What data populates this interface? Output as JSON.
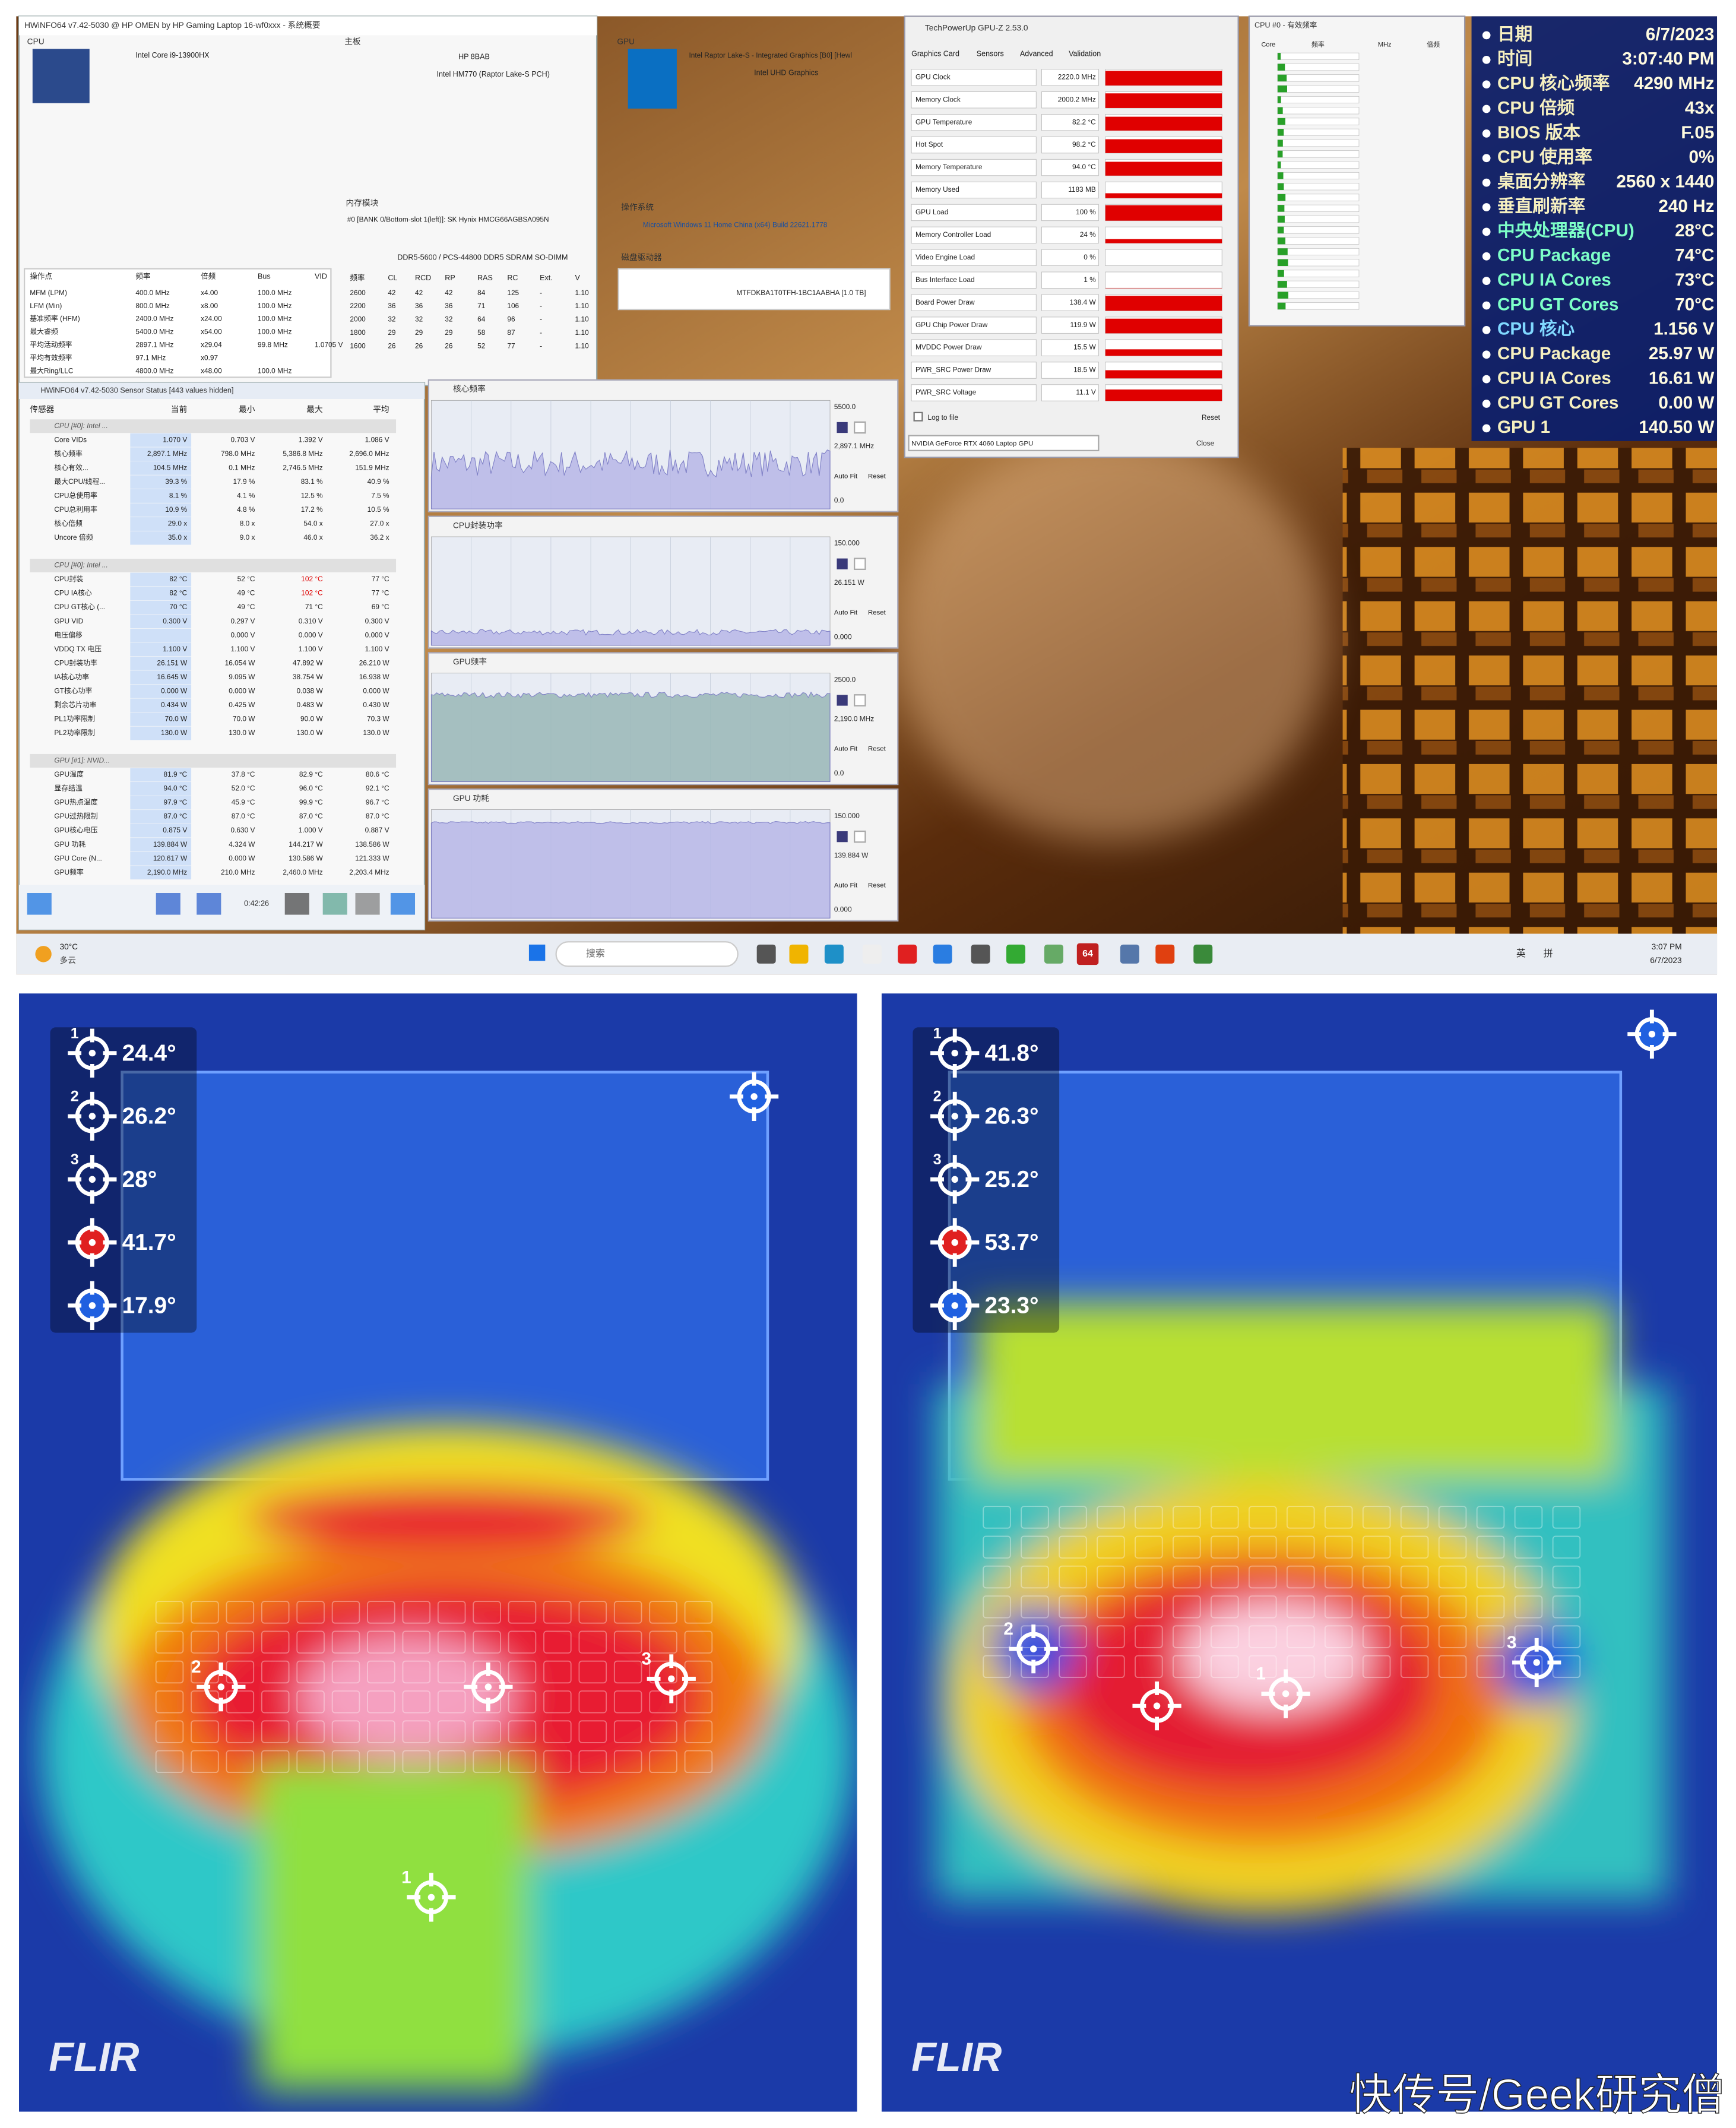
{
  "screenshot": {
    "hwinfo": {
      "title": "HWiNFO64 v7.42-5030 @ HP OMEN by HP Gaming Laptop 16-wf0xxx - 系统概要",
      "cpu_section": "CPU",
      "cpu_name": "Intel Core i9-13900HX",
      "board_section": "主板",
      "board": "HP 8BAB",
      "chipset": "Intel HM770 (Raptor Lake-S PCH)",
      "gpu_section": "GPU",
      "gpu_name": "Intel Raptor Lake-S - Integrated Graphics [B0] [Hewl",
      "gpu_model": "Intel UHD Graphics",
      "os_label": "操作系统",
      "os": "Microsoft Windows 11 Home China (x64) Build 22621.1778",
      "mem_label": "内存模块",
      "mem_module": "#0 [BANK 0/Bottom-slot 1(left)]: SK Hynix HMCG66AGBSA095N",
      "mem_type": "DDR5-5600 / PCS-44800 DDR5 SDRAM SO-DIMM",
      "drive_label": "磁盘驱动器",
      "drive": "MTFDKBA1T0TFH-1BC1AABHA [1.0 TB]",
      "ops_headers": [
        "操作点",
        "频率",
        "倍频",
        "Bus",
        "VID"
      ],
      "ops_rows": [
        [
          "MFM (LPM)",
          "400.0 MHz",
          "x4.00",
          "100.0 MHz",
          null
        ],
        [
          "LFM (Min)",
          "800.0 MHz",
          "x8.00",
          "100.0 MHz",
          null
        ],
        [
          "基准频率 (HFM)",
          "2400.0 MHz",
          "x24.00",
          "100.0 MHz",
          null
        ],
        [
          "最大睿频",
          "5400.0 MHz",
          "x54.00",
          "100.0 MHz",
          null
        ],
        [
          "平均活动频率",
          "2897.1 MHz",
          "x29.04",
          "99.8 MHz",
          "1.0705 V"
        ],
        [
          "平均有效频率",
          "97.1 MHz",
          "x0.97",
          null,
          null
        ],
        [
          "最大Ring/LLC",
          "4800.0 MHz",
          "x48.00",
          "100.0 MHz",
          null
        ]
      ],
      "timing_headers": [
        "频率",
        "CL",
        "RCD",
        "RP",
        "RAS",
        "RC",
        "Ext.",
        "V"
      ],
      "timing_rows": [
        [
          "2600",
          "42",
          "42",
          "42",
          "84",
          "125",
          "-",
          "1.10"
        ],
        [
          "2200",
          "36",
          "36",
          "36",
          "71",
          "106",
          "-",
          "1.10"
        ],
        [
          "2000",
          "32",
          "32",
          "32",
          "64",
          "96",
          "-",
          "1.10"
        ],
        [
          "1800",
          "29",
          "29",
          "29",
          "58",
          "87",
          "-",
          "1.10"
        ],
        [
          "1600",
          "26",
          "26",
          "26",
          "52",
          "77",
          "-",
          "1.10"
        ]
      ]
    },
    "sensors": {
      "title": "HWiNFO64 v7.42-5030 Sensor Status [443 values hidden]",
      "headers": [
        "传感器",
        "当前",
        "最小",
        "最大",
        "平均"
      ],
      "rows": [
        [
          "CPU [#0]: Intel ..."
        ],
        [
          "Core VIDs",
          "1.070 V",
          "0.703 V",
          "1.392 V",
          "1.086 V"
        ],
        [
          "核心频率",
          "2,897.1 MHz",
          "798.0 MHz",
          "5,386.8 MHz",
          "2,696.0 MHz"
        ],
        [
          "核心有效...",
          "104.5 MHz",
          "0.1 MHz",
          "2,746.5 MHz",
          "151.9 MHz"
        ],
        [
          "最大CPU/线程...",
          "39.3 %",
          "17.9 %",
          "83.1 %",
          "40.9 %"
        ],
        [
          "CPU总使用率",
          "8.1 %",
          "4.1 %",
          "12.5 %",
          "7.5 %"
        ],
        [
          "CPU总利用率",
          "10.9 %",
          "4.8 %",
          "17.2 %",
          "10.5 %"
        ],
        [
          "核心倍频",
          "29.0 x",
          "8.0 x",
          "54.0 x",
          "27.0 x"
        ],
        [
          "Uncore 倍频",
          "35.0 x",
          "9.0 x",
          "46.0 x",
          "36.2 x"
        ],
        [
          "CPU [#0]: Intel ..."
        ],
        [
          "CPU封装",
          "82 °C",
          "52 °C",
          "102 °C",
          "77 °C"
        ],
        [
          "CPU IA核心",
          "82 °C",
          "49 °C",
          "102 °C",
          "77 °C"
        ],
        [
          "CPU GT核心 (...",
          "70 °C",
          "49 °C",
          "71 °C",
          "69 °C"
        ],
        [
          "GPU VID",
          "0.300 V",
          "0.297 V",
          "0.310 V",
          "0.300 V"
        ],
        [
          "电压偏移",
          null,
          "0.000 V",
          "0.000 V",
          "0.000 V"
        ],
        [
          "VDDQ TX 电压",
          "1.100 V",
          "1.100 V",
          "1.100 V",
          "1.100 V"
        ],
        [
          "CPU封装功率",
          "26.151 W",
          "16.054 W",
          "47.892 W",
          "26.210 W"
        ],
        [
          "IA核心功率",
          "16.645 W",
          "9.095 W",
          "38.754 W",
          "16.938 W"
        ],
        [
          "GT核心功率",
          "0.000 W",
          "0.000 W",
          "0.038 W",
          "0.000 W"
        ],
        [
          "剩余芯片功率",
          "0.434 W",
          "0.425 W",
          "0.483 W",
          "0.430 W"
        ],
        [
          "PL1功率限制",
          "70.0 W",
          "70.0 W",
          "90.0 W",
          "70.3 W"
        ],
        [
          "PL2功率限制",
          "130.0 W",
          "130.0 W",
          "130.0 W",
          "130.0 W"
        ],
        [
          "GPU [#1]: NVID..."
        ],
        [
          "GPU温度",
          "81.9 °C",
          "37.8 °C",
          "82.9 °C",
          "80.6 °C"
        ],
        [
          "显存结温",
          "94.0 °C",
          "52.0 °C",
          "96.0 °C",
          "92.1 °C"
        ],
        [
          "GPU热点温度",
          "97.9 °C",
          "45.9 °C",
          "99.9 °C",
          "96.7 °C"
        ],
        [
          "GPU过热限制",
          "87.0 °C",
          "87.0 °C",
          "87.0 °C",
          "87.0 °C"
        ],
        [
          "GPU核心电压",
          "0.875 V",
          "0.630 V",
          "1.000 V",
          "0.887 V"
        ],
        [
          "GPU 功耗",
          "139.884 W",
          "4.324 W",
          "144.217 W",
          "138.586 W"
        ],
        [
          "GPU Core (N...",
          "120.617 W",
          "0.000 W",
          "130.586 W",
          "121.333 W"
        ],
        [
          "GPU频率",
          "2,190.0 MHz",
          "210.0 MHz",
          "2,460.0 MHz",
          "2,203.4 MHz"
        ]
      ],
      "uptime": "0:42:26"
    },
    "graphs": [
      {
        "title": "核心频率",
        "max": "5500.0",
        "current": "2,897.1 MHz",
        "min": "0.0"
      },
      {
        "title": "CPU封装功率",
        "max": "150.000",
        "current": "26.151 W",
        "min": "0.000"
      },
      {
        "title": "GPU频率",
        "max": "2500.0",
        "current": "2,190.0 MHz",
        "min": "0.0"
      },
      {
        "title": "GPU 功耗",
        "max": "150.000",
        "current": "139.884 W",
        "min": "0.000"
      }
    ],
    "graph_buttons": [
      "Auto Fit",
      "Reset"
    ],
    "gpuz": {
      "title": "TechPowerUp GPU-Z 2.53.0",
      "tabs": [
        "Graphics Card",
        "Sensors",
        "Advanced",
        "Validation"
      ],
      "rows": [
        [
          "GPU Clock",
          "2220.0 MHz"
        ],
        [
          "Memory Clock",
          "2000.2 MHz"
        ],
        [
          "GPU Temperature",
          "82.2 °C"
        ],
        [
          "Hot Spot",
          "98.2 °C"
        ],
        [
          "Memory Temperature",
          "94.0 °C"
        ],
        [
          "Memory Used",
          "1183 MB"
        ],
        [
          "GPU Load",
          "100 %"
        ],
        [
          "Memory Controller Load",
          "24 %"
        ],
        [
          "Video Engine Load",
          "0 %"
        ],
        [
          "Bus Interface Load",
          "1 %"
        ],
        [
          "Board Power Draw",
          "138.4 W"
        ],
        [
          "GPU Chip Power Draw",
          "119.9 W"
        ],
        [
          "MVDDC Power Draw",
          "15.5 W"
        ],
        [
          "PWR_SRC Power Draw",
          "18.5 W"
        ],
        [
          "PWR_SRC Voltage",
          "11.1 V"
        ]
      ],
      "log": "Log to file",
      "reset": "Reset",
      "device": "NVIDIA GeForce RTX 4060 Laptop GPU",
      "close": "Close"
    },
    "cpu_freq": {
      "title": "CPU #0 - 有效频率",
      "headers": [
        "Core",
        "频率",
        "MHz",
        "倍频"
      ]
    },
    "osd": [
      {
        "label": "日期",
        "value": "6/7/2023",
        "color": "#f6f0c0"
      },
      {
        "label": "时间",
        "value": "3:07:40 PM",
        "color": "#f6f0c0"
      },
      {
        "label": "CPU 核心频率",
        "value": "4290 MHz",
        "color": "#f6f0c0"
      },
      {
        "label": "CPU 倍频",
        "value": "43x",
        "color": "#f6f0c0"
      },
      {
        "label": "BIOS 版本",
        "value": "F.05",
        "color": "#f6f0c0"
      },
      {
        "label": "CPU 使用率",
        "value": "0%",
        "color": "#f6f0c0"
      },
      {
        "label": "桌面分辨率",
        "value": "2560 x 1440",
        "color": "#f6f0c0"
      },
      {
        "label": "垂直刷新率",
        "value": "240 Hz",
        "color": "#f6f0c0"
      },
      {
        "label": "中央处理器(CPU)",
        "value": "28°C",
        "color": "#7dffc8"
      },
      {
        "label": "CPU Package",
        "value": "74°C",
        "color": "#7dffc8"
      },
      {
        "label": "CPU IA Cores",
        "value": "73°C",
        "color": "#7dffc8"
      },
      {
        "label": "CPU GT Cores",
        "value": "70°C",
        "color": "#7dffc8"
      },
      {
        "label": "CPU 核心",
        "value": "1.156 V",
        "color": "#80d8ff"
      },
      {
        "label": "CPU Package",
        "value": "25.97 W",
        "color": "#f6f0c0"
      },
      {
        "label": "CPU IA Cores",
        "value": "16.61 W",
        "color": "#f6f0c0"
      },
      {
        "label": "CPU GT Cores",
        "value": "0.00 W",
        "color": "#f6f0c0"
      },
      {
        "label": "GPU 1",
        "value": "140.50 W",
        "color": "#f6f0c0"
      }
    ],
    "taskbar": {
      "temp": "30°C",
      "weather": "多云",
      "search": "搜索",
      "lang": "英",
      "ime": "拼",
      "time": "3:07 PM",
      "date": "6/7/2023",
      "badge": "64"
    }
  },
  "thermal": [
    {
      "brand": "FLIR",
      "legend": [
        {
          "n": "1",
          "reading": "24.4°"
        },
        {
          "n": "2",
          "reading": "26.2°"
        },
        {
          "n": "3",
          "reading": "28°"
        },
        {
          "reading": "41.7°"
        },
        {
          "reading": "17.9°"
        }
      ]
    },
    {
      "brand": "FLIR",
      "legend": [
        {
          "n": "1",
          "reading": "41.8°"
        },
        {
          "n": "2",
          "reading": "26.3°"
        },
        {
          "n": "3",
          "reading": "25.2°"
        },
        {
          "reading": "53.7°"
        },
        {
          "reading": "23.3°"
        }
      ]
    }
  ],
  "watermark": "快传号/Geek研究僧"
}
